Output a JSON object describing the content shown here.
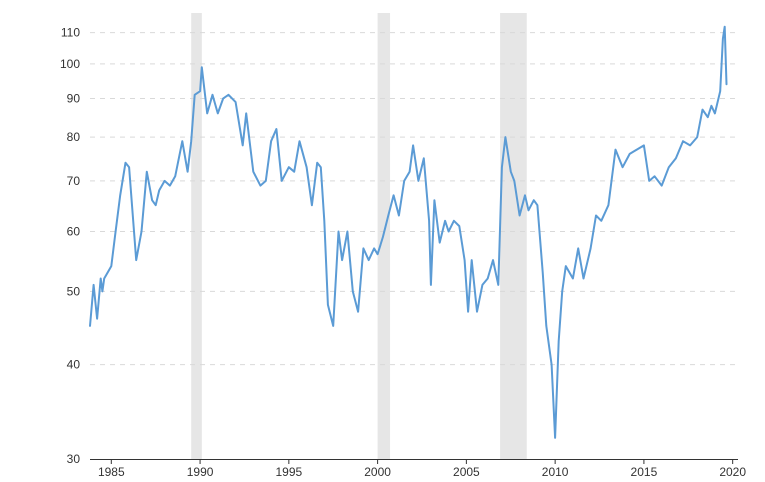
{
  "colors": {
    "background": "#ffffff",
    "line": "#5b9bd5",
    "grid": "#d9d9d9",
    "recession_band": "#e6e6e6",
    "axis": "#333333"
  },
  "chart_data": {
    "type": "line",
    "title": "",
    "xlabel": "",
    "ylabel": "",
    "y_scale": "log",
    "ylim": [
      30,
      115
    ],
    "xlim": [
      1983.8,
      2020.3
    ],
    "grid": {
      "horizontal": true,
      "vertical": false,
      "style": "dashed"
    },
    "legend": "none",
    "y_ticks": [
      30,
      40,
      50,
      60,
      70,
      80,
      90,
      100,
      110
    ],
    "y_tick_labels": [
      "30",
      "40",
      "50",
      "60",
      "70",
      "80",
      "90",
      "100",
      "110"
    ],
    "x_ticks": [
      1985,
      1990,
      1995,
      2000,
      2005,
      2010,
      2015,
      2020
    ],
    "x_tick_labels": [
      "1985",
      "1990",
      "1995",
      "2000",
      "2005",
      "2010",
      "2015",
      "2020"
    ],
    "shaded_periods": [
      {
        "start": 1989.5,
        "end": 1990.1
      },
      {
        "start": 2000.0,
        "end": 2000.7
      },
      {
        "start": 2006.9,
        "end": 2008.4
      }
    ],
    "series": [
      {
        "x": [
          1983.8,
          1984.0,
          1984.2,
          1984.4,
          1984.5,
          1984.6,
          1984.8,
          1985.0,
          1985.2,
          1985.5,
          1985.8,
          1986.0,
          1986.4,
          1986.7,
          1987.0,
          1987.3,
          1987.5,
          1987.7,
          1988.0,
          1988.3,
          1988.6,
          1989.0,
          1989.3,
          1989.5,
          1989.7,
          1990.0,
          1990.1,
          1990.4,
          1990.7,
          1991.0,
          1991.3,
          1991.6,
          1992.0,
          1992.4,
          1992.6,
          1993.0,
          1993.4,
          1993.7,
          1994.0,
          1994.3,
          1994.6,
          1995.0,
          1995.3,
          1995.6,
          1996.0,
          1996.3,
          1996.6,
          1996.8,
          1997.0,
          1997.2,
          1997.5,
          1997.8,
          1998.0,
          1998.3,
          1998.6,
          1998.9,
          1999.2,
          1999.5,
          1999.8,
          2000.0,
          2000.3,
          2000.6,
          2000.9,
          2001.2,
          2001.5,
          2001.8,
          2002.0,
          2002.3,
          2002.6,
          2002.9,
          2003.0,
          2003.2,
          2003.5,
          2003.8,
          2004.0,
          2004.3,
          2004.6,
          2004.9,
          2005.1,
          2005.3,
          2005.6,
          2005.9,
          2006.2,
          2006.5,
          2006.8,
          2007.0,
          2007.2,
          2007.5,
          2007.7,
          2008.0,
          2008.3,
          2008.5,
          2008.8,
          2009.0,
          2009.3,
          2009.5,
          2009.8,
          2010.0,
          2010.2,
          2010.4,
          2010.6,
          2011.0,
          2011.3,
          2011.6,
          2012.0,
          2012.3,
          2012.6,
          2013.0,
          2013.4,
          2013.8,
          2014.2,
          2014.6,
          2015.0,
          2015.3,
          2015.6,
          2016.0,
          2016.4,
          2016.8,
          2017.2,
          2017.6,
          2018.0,
          2018.3,
          2018.6,
          2018.8,
          2019.0,
          2019.3,
          2019.45,
          2019.55,
          2019.65
        ],
        "values": [
          45,
          51,
          46,
          52,
          50,
          52,
          53,
          54,
          59,
          67,
          74,
          73,
          55,
          60,
          72,
          66,
          65,
          68,
          70,
          69,
          71,
          79,
          72,
          79,
          91,
          92,
          99,
          86,
          91,
          86,
          90,
          91,
          89,
          78,
          86,
          72,
          69,
          70,
          79,
          82,
          70,
          73,
          72,
          79,
          73,
          65,
          74,
          73,
          62,
          48,
          45,
          60,
          55,
          60,
          50,
          47,
          57,
          55,
          57,
          56,
          59,
          63,
          67,
          63,
          70,
          72,
          78,
          70,
          75,
          62,
          51,
          66,
          58,
          62,
          60,
          62,
          61,
          55,
          47,
          55,
          47,
          51,
          52,
          55,
          51,
          73,
          80,
          72,
          70,
          63,
          67,
          64,
          66,
          65,
          53,
          45,
          40,
          32,
          43,
          50,
          54,
          52,
          57,
          52,
          57,
          63,
          62,
          65,
          77,
          73,
          76,
          77,
          78,
          70,
          71,
          69,
          73,
          75,
          79,
          78,
          80,
          87,
          85,
          88,
          86,
          92,
          108,
          112,
          94
        ]
      }
    ]
  }
}
